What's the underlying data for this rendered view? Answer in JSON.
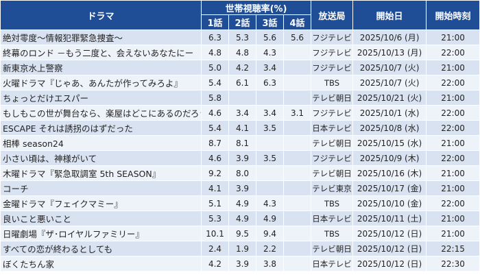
{
  "header": {
    "drama": "ドラマ",
    "rating_group": "世帯視聴率(%)",
    "ep1": "1話",
    "ep2": "2話",
    "ep3": "3話",
    "ep4": "4話",
    "station": "放送局",
    "start_date": "開始日",
    "start_time": "開始時刻"
  },
  "rows": [
    {
      "title": "絶対零度～情報犯罪緊急捜査～",
      "ep1": "6.3",
      "ep2": "5.3",
      "ep3": "5.6",
      "ep4": "5.6",
      "station": "フジテレビ",
      "date": "2025/10/6 (月)",
      "time": "21:00"
    },
    {
      "title": "終幕のロンド －もう二度と、会えないあなたにー",
      "ep1": "4.8",
      "ep2": "4.8",
      "ep3": "4.3",
      "ep4": "",
      "station": "フジテレビ",
      "date": "2025/10/13 (月)",
      "time": "22:00"
    },
    {
      "title": "新東京水上警察",
      "ep1": "5.0",
      "ep2": "4.2",
      "ep3": "3.4",
      "ep4": "",
      "station": "フジテレビ",
      "date": "2025/10/7 (火)",
      "time": "21:00"
    },
    {
      "title": "火曜ドラマ『じゃあ、あんたが作ってみろよ』",
      "ep1": "5.4",
      "ep2": "6.1",
      "ep3": "6.3",
      "ep4": "",
      "station": "TBS",
      "date": "2025/10/7 (火)",
      "time": "22:00"
    },
    {
      "title": "ちょっとだけエスパー",
      "ep1": "5.8",
      "ep2": "",
      "ep3": "",
      "ep4": "",
      "station": "テレビ朝日",
      "date": "2025/10/21 (火)",
      "time": "21:00"
    },
    {
      "title": "もしもこの世が舞台なら、楽屋はどこにあるのだろう",
      "ep1": "4.6",
      "ep2": "3.4",
      "ep3": "3.4",
      "ep4": "3.1",
      "station": "フジテレビ",
      "date": "2025/10/1 (水)",
      "time": "22:00"
    },
    {
      "title": "ESCAPE それは誘拐のはずだった",
      "ep1": "5.4",
      "ep2": "4.1",
      "ep3": "3.5",
      "ep4": "",
      "station": "日本テレビ",
      "date": "2025/10/8 (水)",
      "time": "22:00"
    },
    {
      "title": "相棒 season24",
      "ep1": "8.7",
      "ep2": "8.1",
      "ep3": "",
      "ep4": "",
      "station": "テレビ朝日",
      "date": "2025/10/15 (水)",
      "time": "21:00"
    },
    {
      "title": "小さい頃は、神様がいて",
      "ep1": "4.6",
      "ep2": "3.9",
      "ep3": "3.5",
      "ep4": "",
      "station": "フジテレビ",
      "date": "2025/10/9 (木)",
      "time": "22:00"
    },
    {
      "title": "木曜ドラマ『緊急取調室 5th SEASON』",
      "ep1": "9.2",
      "ep2": "8.0",
      "ep3": "",
      "ep4": "",
      "station": "テレビ朝日",
      "date": "2025/10/16 (木)",
      "time": "21:00"
    },
    {
      "title": "コーチ",
      "ep1": "4.1",
      "ep2": "3.9",
      "ep3": "",
      "ep4": "",
      "station": "テレビ東京",
      "date": "2025/10/17 (金)",
      "time": "21:00"
    },
    {
      "title": "金曜ドラマ『フェイクマミー』",
      "ep1": "5.1",
      "ep2": "4.9",
      "ep3": "4.3",
      "ep4": "",
      "station": "TBS",
      "date": "2025/10/10 (金)",
      "time": "22:00"
    },
    {
      "title": "良いこと悪いこと",
      "ep1": "5.3",
      "ep2": "4.9",
      "ep3": "4.9",
      "ep4": "",
      "station": "日本テレビ",
      "date": "2025/10/11 (土)",
      "time": "21:00"
    },
    {
      "title": "日曜劇場『ザ･ロイヤルファミリー』",
      "ep1": "10.1",
      "ep2": "9.5",
      "ep3": "9.4",
      "ep4": "",
      "station": "TBS",
      "date": "2025/10/12 (日)",
      "time": "21:00"
    },
    {
      "title": "すべての恋が終わるとしても",
      "ep1": "2.4",
      "ep2": "1.9",
      "ep3": "2.2",
      "ep4": "",
      "station": "テレビ朝日",
      "date": "2025/10/12 (日)",
      "time": "22:15"
    },
    {
      "title": "ぼくたちん家",
      "ep1": "4.2",
      "ep2": "3.9",
      "ep3": "3.8",
      "ep4": "",
      "station": "日本テレビ",
      "date": "2025/10/12 (日)",
      "time": "22:30"
    }
  ]
}
